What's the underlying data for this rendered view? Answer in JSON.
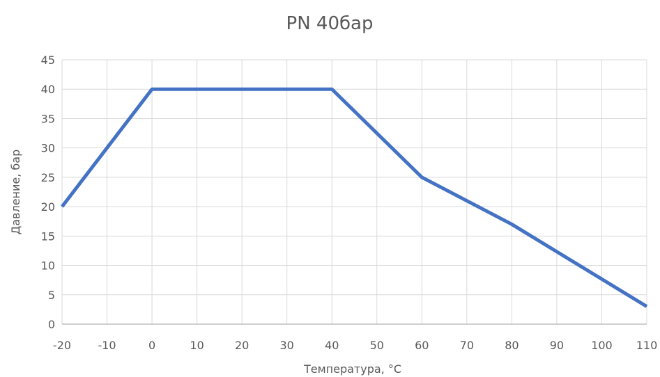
{
  "chart_data": {
    "type": "line",
    "title": "PN 40бар",
    "xlabel": "Температура, °C",
    "ylabel": "Давление, бар",
    "x_ticks": [
      -20,
      -10,
      0,
      10,
      20,
      30,
      40,
      50,
      60,
      70,
      80,
      90,
      100,
      110
    ],
    "y_ticks": [
      0,
      5,
      10,
      15,
      20,
      25,
      30,
      35,
      40,
      45
    ],
    "xlim": [
      -20,
      110
    ],
    "ylim": [
      0,
      45
    ],
    "grid": true,
    "legend": "none",
    "series": [
      {
        "color": "#4472C4",
        "x": [
          -20,
          0,
          40,
          60,
          80,
          110
        ],
        "y": [
          20,
          40,
          40,
          25,
          17,
          3
        ]
      }
    ]
  }
}
